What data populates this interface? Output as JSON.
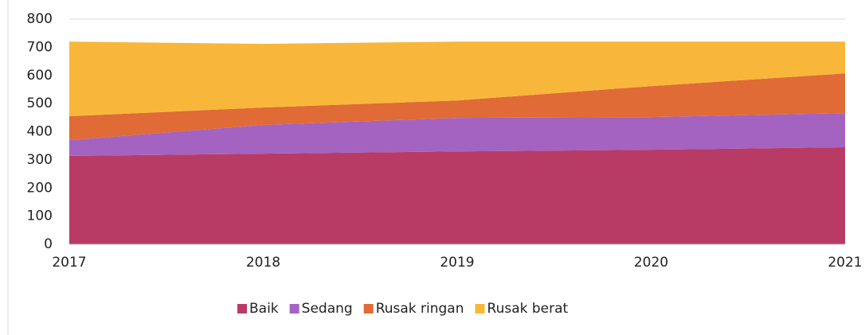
{
  "chart_data": {
    "type": "stacked_area",
    "categories": [
      "2017",
      "2018",
      "2019",
      "2020",
      "2021"
    ],
    "series": [
      {
        "name": "Baik",
        "color": "#b83b66",
        "values": [
          314,
          322,
          330,
          336,
          345
        ]
      },
      {
        "name": "Sedang",
        "color": "#a463c0",
        "values": [
          56,
          102,
          119,
          116,
          121
        ]
      },
      {
        "name": "Rusak ringan",
        "color": "#e06b36",
        "values": [
          85,
          62,
          62,
          110,
          141
        ]
      },
      {
        "name": "Rusak berat",
        "color": "#f8b73a",
        "values": [
          265,
          226,
          209,
          158,
          113
        ]
      }
    ],
    "ylim": [
      0,
      800
    ],
    "yticks": [
      0,
      100,
      200,
      300,
      400,
      500,
      600,
      700,
      800
    ],
    "grid": true,
    "legend": "bottom"
  }
}
